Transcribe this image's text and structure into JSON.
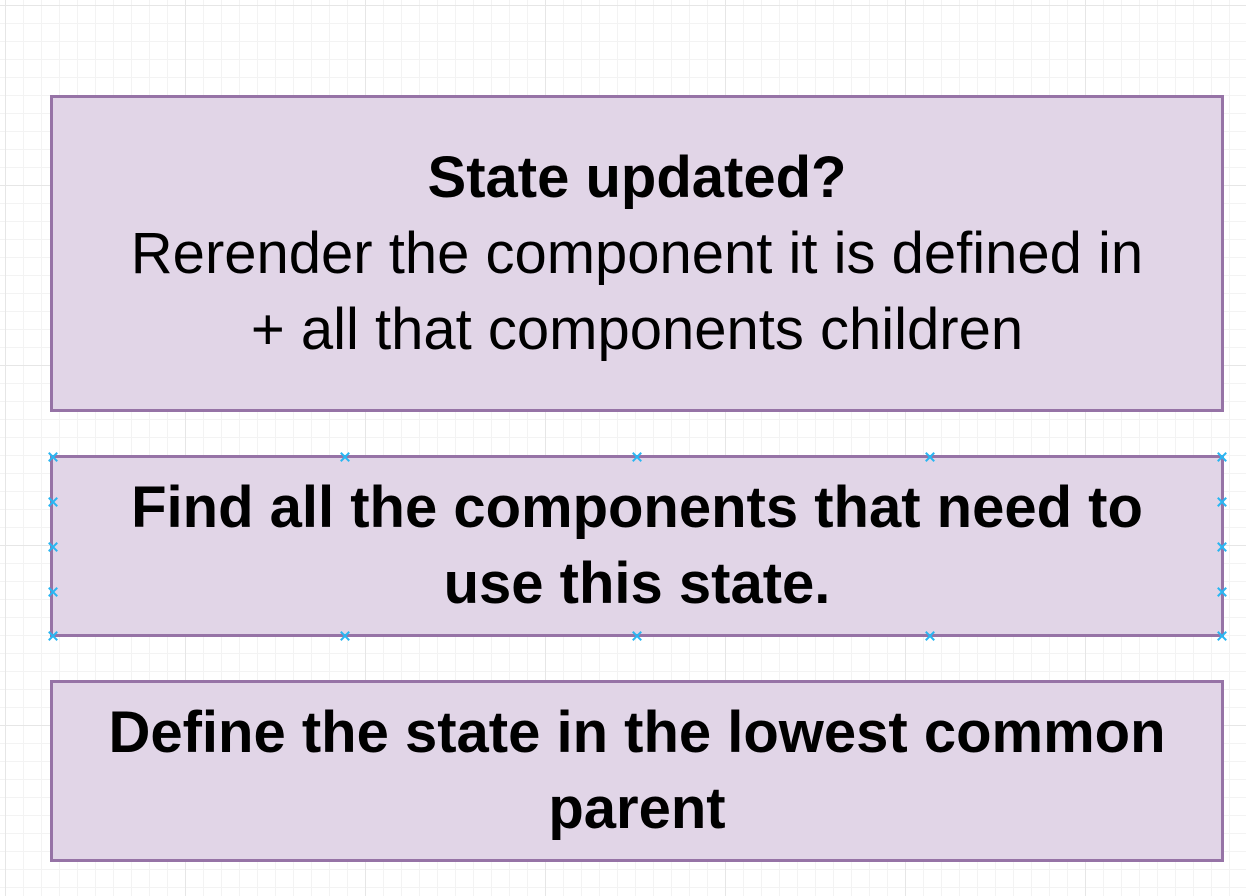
{
  "diagram": {
    "box1": {
      "title": "State updated?",
      "line1": "Rerender the component it is defined in",
      "line2": "+ all that components children"
    },
    "box2": {
      "text": "Find all the components that need to use this state."
    },
    "box3": {
      "text": "Define the state in the lowest common parent"
    }
  },
  "colors": {
    "box_fill": "#e1d5e7",
    "box_stroke": "#9673a6",
    "selection_handle": "#29b6f2",
    "grid_line": "#e6e6e6"
  },
  "icons": {
    "selection_handle": "x-mark-icon"
  }
}
